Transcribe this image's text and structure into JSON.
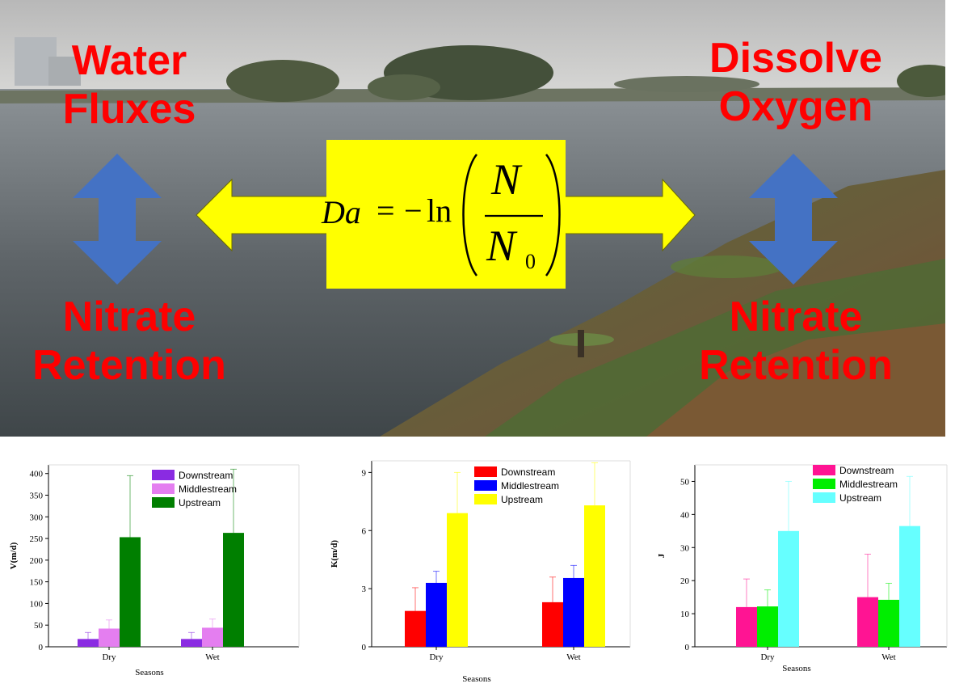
{
  "photo_labels": {
    "top_left": [
      "Water",
      "Fluxes"
    ],
    "top_right": [
      "Dissolve",
      "Oxygen"
    ],
    "bottom_left": [
      "Nitrate",
      "Retention"
    ],
    "bottom_right": [
      "Nitrate",
      "Retention"
    ]
  },
  "formula": {
    "lhs": "Da",
    "equals": "=",
    "minus": "−",
    "ln": "ln",
    "numerator": "N",
    "denominator": "N",
    "subscript": "0"
  },
  "colors": {
    "label_red": "#ff0000",
    "arrow_blue": "#4472c4",
    "arrow_yellow": "#ffff00"
  },
  "chart_data": [
    {
      "type": "bar",
      "categories": [
        "Dry",
        "Wet"
      ],
      "xlabel": "Seasons",
      "ylabel": "V(m/d)",
      "ylim": [
        0,
        420
      ],
      "yticks": [
        0,
        50,
        100,
        150,
        200,
        250,
        300,
        350,
        400
      ],
      "legend_position": "top-left",
      "series": [
        {
          "name": "Downstream",
          "color": "#8a2be2",
          "values": [
            18,
            18
          ],
          "errors": [
            15,
            15
          ]
        },
        {
          "name": "Middlestream",
          "color": "#e47ef0",
          "values": [
            42,
            44
          ],
          "errors": [
            20,
            20
          ]
        },
        {
          "name": "Upstream",
          "color": "#007f00",
          "values": [
            253,
            263
          ],
          "errors": [
            142,
            147
          ]
        }
      ]
    },
    {
      "type": "bar",
      "categories": [
        "Dry",
        "Wet"
      ],
      "xlabel": "Seasons",
      "ylabel": "K(m/d)",
      "ylim": [
        0,
        9.6
      ],
      "yticks": [
        0,
        3,
        6,
        9
      ],
      "legend_position": "top-left",
      "series": [
        {
          "name": "Downstream",
          "color": "#ff0000",
          "values": [
            1.85,
            2.3
          ],
          "errors": [
            1.2,
            1.3
          ]
        },
        {
          "name": "Middlestream",
          "color": "#0000ff",
          "values": [
            3.3,
            3.55
          ],
          "errors": [
            0.6,
            0.65
          ]
        },
        {
          "name": "Upstream",
          "color": "#ffff00",
          "values": [
            6.9,
            7.3
          ],
          "errors": [
            2.1,
            2.2
          ]
        }
      ]
    },
    {
      "type": "bar",
      "categories": [
        "Dry",
        "Wet"
      ],
      "xlabel": "Seasons",
      "ylabel": "J",
      "ylim": [
        0,
        55
      ],
      "yticks": [
        0,
        10,
        20,
        30,
        40,
        50
      ],
      "legend_position": "top-left",
      "series": [
        {
          "name": "Downstream",
          "color": "#ff1493",
          "values": [
            12,
            15
          ],
          "errors": [
            8.5,
            13
          ]
        },
        {
          "name": "Middlestream",
          "color": "#00ee00",
          "values": [
            12.2,
            14.2
          ],
          "errors": [
            5,
            5
          ]
        },
        {
          "name": "Upstream",
          "color": "#66ffff",
          "values": [
            35,
            36.5
          ],
          "errors": [
            15,
            15
          ]
        }
      ]
    }
  ]
}
